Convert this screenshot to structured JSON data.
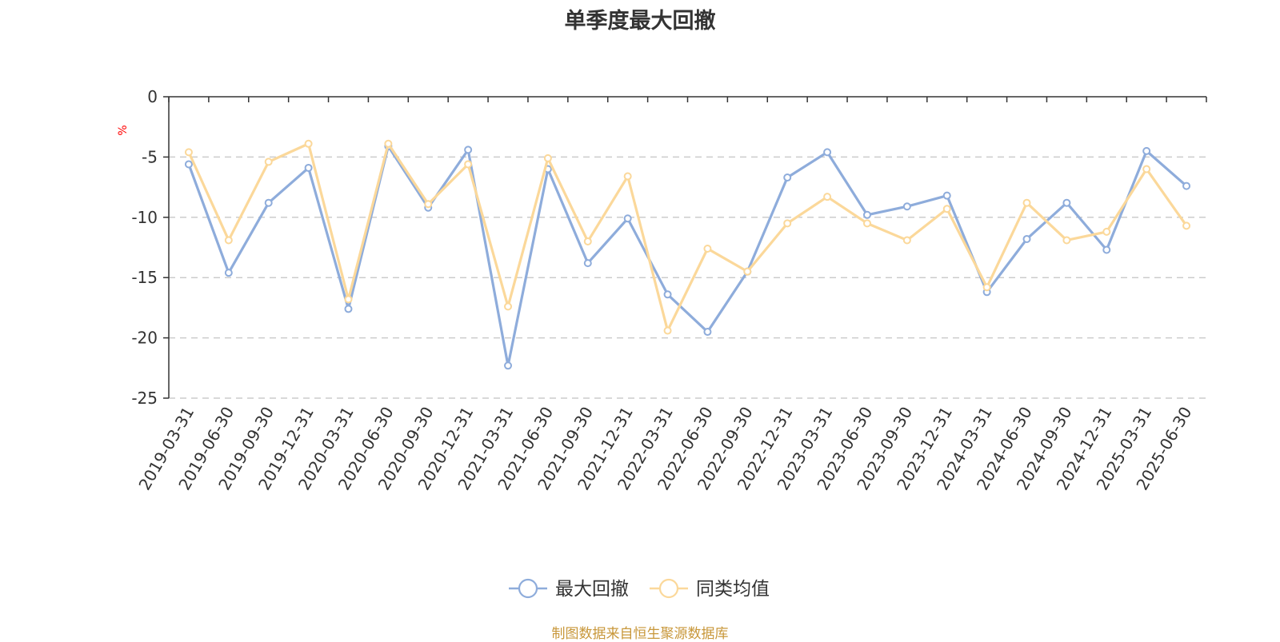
{
  "chart_data": {
    "type": "line",
    "title": "单季度最大回撤",
    "ylabel": "%",
    "xlabel": "",
    "ylim": [
      -25,
      0
    ],
    "yticks": [
      0,
      -5,
      -10,
      -15,
      -20,
      -25
    ],
    "grid": true,
    "legend_position": "bottom-center",
    "categories": [
      "2019-03-31",
      "2019-06-30",
      "2019-09-30",
      "2019-12-31",
      "2020-03-31",
      "2020-06-30",
      "2020-09-30",
      "2020-12-31",
      "2021-03-31",
      "2021-06-30",
      "2021-09-30",
      "2021-12-31",
      "2022-03-31",
      "2022-06-30",
      "2022-09-30",
      "2022-12-31",
      "2023-03-31",
      "2023-06-30",
      "2023-09-30",
      "2023-12-31",
      "2024-03-31",
      "2024-06-30",
      "2024-09-30",
      "2024-12-31",
      "2025-03-31",
      "2025-06-30"
    ],
    "series": [
      {
        "name": "最大回撤",
        "color": "#8eacdb",
        "values": [
          -5.6,
          -14.6,
          -8.8,
          -5.9,
          -17.6,
          -4.1,
          -9.2,
          -4.4,
          -22.3,
          -6.0,
          -13.8,
          -10.1,
          -16.4,
          -19.5,
          -14.5,
          -6.7,
          -4.6,
          -9.8,
          -9.1,
          -8.2,
          -16.2,
          -11.8,
          -8.8,
          -12.7,
          -4.5,
          -7.4
        ]
      },
      {
        "name": "同类均值",
        "color": "#fbd89a",
        "values": [
          -4.6,
          -11.9,
          -5.4,
          -3.9,
          -16.8,
          -3.9,
          -8.9,
          -5.6,
          -17.4,
          -5.1,
          -12.0,
          -6.6,
          -19.4,
          -12.6,
          -14.5,
          -10.5,
          -8.3,
          -10.5,
          -11.9,
          -9.3,
          -15.8,
          -8.8,
          -11.9,
          -11.2,
          -6.0,
          -10.7
        ]
      }
    ]
  },
  "source_note": "制图数据来自恒生聚源数据库"
}
